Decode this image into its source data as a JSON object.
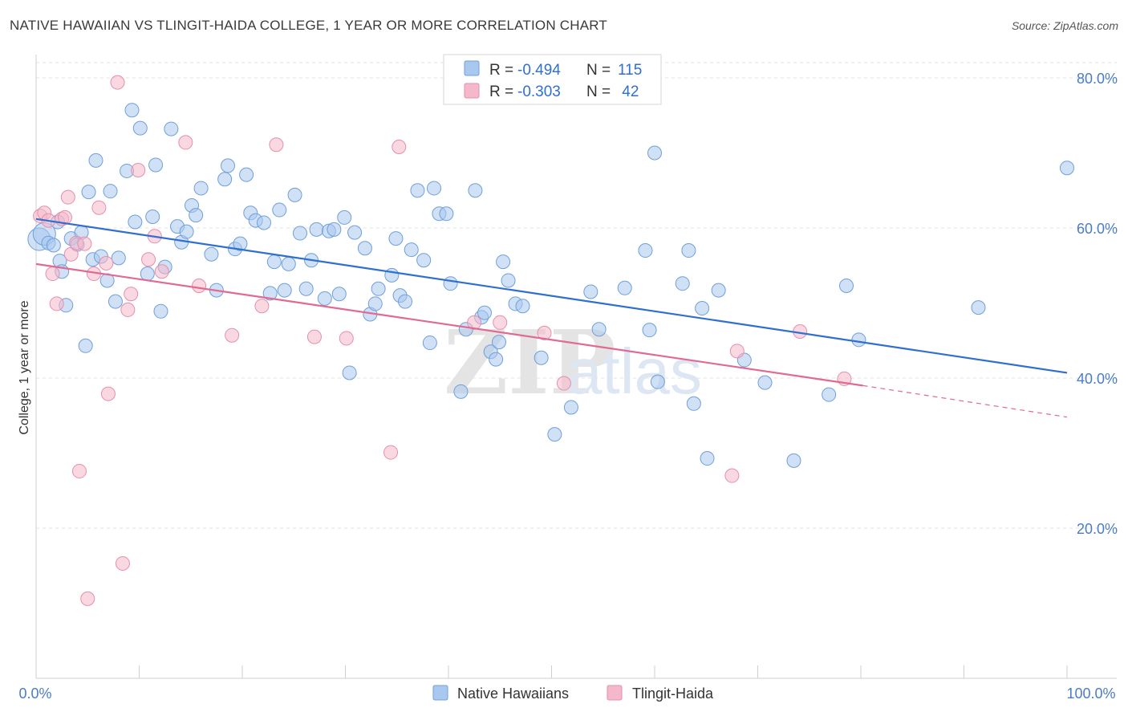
{
  "header": {
    "title": "NATIVE HAWAIIAN VS TLINGIT-HAIDA COLLEGE, 1 YEAR OR MORE CORRELATION CHART",
    "source": "Source: ZipAtlas.com"
  },
  "legend_top": {
    "rows": [
      {
        "r_label": "R = ",
        "r_value": "-0.494",
        "n_label": "N = ",
        "n_value": "115",
        "color": "#a9c8ee"
      },
      {
        "r_label": "R = ",
        "r_value": "-0.303",
        "n_label": "N = ",
        "n_value": " 42",
        "color": "#f5b8cb"
      }
    ]
  },
  "legend_bottom": [
    {
      "label": "Native Hawaiians",
      "color": "#a9c8ee"
    },
    {
      "label": "Tlingit-Haida",
      "color": "#f5b8cb"
    }
  ],
  "watermark": {
    "zip": "ZIP",
    "atlas": "atlas"
  },
  "chart_data": {
    "type": "scatter",
    "title": "NATIVE HAWAIIAN VS TLINGIT-HAIDA COLLEGE, 1 YEAR OR MORE CORRELATION CHART",
    "xlabel": "",
    "ylabel": "College, 1 year or more",
    "xlim": [
      0,
      100
    ],
    "ylim": [
      0,
      85
    ],
    "x_tick_labels": [
      "0.0%",
      "100.0%"
    ],
    "y_ticks": [
      20,
      40,
      60,
      80
    ],
    "y_tick_labels": [
      "20.0%",
      "40.0%",
      "60.0%",
      "80.0%"
    ],
    "grid": true,
    "legend_position": "top-center",
    "series": [
      {
        "name": "Native Hawaiians",
        "color": "#a9c8ee",
        "stroke": "#6f9fdc",
        "trend": {
          "x": [
            0,
            100
          ],
          "y": [
            61.2,
            40.7
          ],
          "color": "#2f6fd0"
        },
        "points": [
          [
            0.3,
            58.5
          ],
          [
            0.8,
            59.2
          ],
          [
            1.2,
            58.0
          ],
          [
            1.7,
            57.7
          ],
          [
            2.1,
            60.8
          ],
          [
            2.3,
            55.6
          ],
          [
            2.5,
            54.2
          ],
          [
            2.9,
            49.7
          ],
          [
            3.4,
            58.6
          ],
          [
            4.0,
            57.8
          ],
          [
            4.4,
            59.4
          ],
          [
            4.8,
            44.3
          ],
          [
            5.1,
            64.8
          ],
          [
            5.5,
            55.8
          ],
          [
            5.8,
            69.0
          ],
          [
            6.3,
            56.2
          ],
          [
            6.9,
            53.0
          ],
          [
            7.2,
            64.9
          ],
          [
            7.7,
            50.2
          ],
          [
            8.0,
            56.0
          ],
          [
            8.8,
            67.6
          ],
          [
            9.3,
            75.7
          ],
          [
            9.6,
            60.8
          ],
          [
            10.1,
            73.3
          ],
          [
            10.8,
            53.9
          ],
          [
            11.3,
            61.5
          ],
          [
            11.6,
            68.4
          ],
          [
            12.1,
            48.9
          ],
          [
            12.5,
            54.8
          ],
          [
            13.1,
            73.2
          ],
          [
            13.7,
            60.2
          ],
          [
            14.1,
            58.1
          ],
          [
            14.6,
            59.5
          ],
          [
            15.1,
            63.0
          ],
          [
            15.5,
            61.7
          ],
          [
            16.0,
            65.3
          ],
          [
            17.0,
            56.5
          ],
          [
            17.5,
            51.7
          ],
          [
            18.3,
            66.5
          ],
          [
            18.6,
            68.3
          ],
          [
            19.3,
            57.2
          ],
          [
            19.8,
            57.9
          ],
          [
            20.4,
            67.1
          ],
          [
            20.8,
            62.0
          ],
          [
            21.3,
            61.0
          ],
          [
            22.1,
            60.7
          ],
          [
            22.7,
            51.3
          ],
          [
            23.1,
            55.5
          ],
          [
            23.6,
            62.4
          ],
          [
            24.1,
            51.7
          ],
          [
            24.5,
            55.2
          ],
          [
            25.1,
            64.4
          ],
          [
            25.6,
            59.3
          ],
          [
            26.2,
            51.9
          ],
          [
            26.7,
            55.7
          ],
          [
            27.2,
            59.8
          ],
          [
            28.0,
            50.6
          ],
          [
            28.4,
            59.6
          ],
          [
            28.9,
            59.8
          ],
          [
            29.4,
            51.2
          ],
          [
            29.9,
            61.4
          ],
          [
            30.4,
            40.7
          ],
          [
            30.9,
            59.4
          ],
          [
            31.9,
            57.3
          ],
          [
            32.4,
            48.5
          ],
          [
            32.9,
            49.9
          ],
          [
            33.2,
            51.9
          ],
          [
            34.5,
            53.7
          ],
          [
            34.9,
            58.6
          ],
          [
            35.3,
            51.0
          ],
          [
            35.8,
            50.2
          ],
          [
            36.4,
            57.1
          ],
          [
            37.0,
            65.0
          ],
          [
            37.6,
            55.7
          ],
          [
            38.2,
            44.7
          ],
          [
            38.6,
            65.3
          ],
          [
            39.1,
            61.9
          ],
          [
            39.8,
            61.9
          ],
          [
            40.2,
            52.6
          ],
          [
            41.2,
            38.2
          ],
          [
            41.7,
            46.5
          ],
          [
            42.6,
            65.0
          ],
          [
            43.2,
            48.1
          ],
          [
            43.5,
            48.7
          ],
          [
            44.1,
            43.5
          ],
          [
            44.6,
            42.5
          ],
          [
            44.9,
            44.8
          ],
          [
            45.3,
            55.5
          ],
          [
            45.8,
            53.0
          ],
          [
            46.5,
            49.9
          ],
          [
            47.2,
            49.6
          ],
          [
            49.0,
            42.7
          ],
          [
            50.3,
            32.5
          ],
          [
            51.9,
            36.1
          ],
          [
            53.8,
            51.5
          ],
          [
            54.6,
            46.5
          ],
          [
            57.1,
            52.0
          ],
          [
            59.1,
            57.0
          ],
          [
            59.5,
            46.4
          ],
          [
            60.0,
            70.0
          ],
          [
            60.3,
            39.5
          ],
          [
            62.7,
            52.6
          ],
          [
            63.3,
            57.0
          ],
          [
            63.8,
            36.6
          ],
          [
            64.6,
            49.3
          ],
          [
            65.1,
            29.3
          ],
          [
            66.2,
            51.7
          ],
          [
            68.7,
            42.4
          ],
          [
            70.7,
            39.4
          ],
          [
            73.5,
            29.0
          ],
          [
            76.9,
            37.8
          ],
          [
            78.6,
            52.3
          ],
          [
            79.8,
            45.1
          ],
          [
            91.4,
            49.4
          ],
          [
            100.0,
            68.0
          ]
        ]
      },
      {
        "name": "Tlingit-Haida",
        "color": "#f5b8cb",
        "stroke": "#e58fab",
        "trend": {
          "x": [
            0,
            80.2
          ],
          "y": [
            55.2,
            39.0
          ],
          "color": "#e06a92"
        },
        "trend_ext": {
          "x": [
            80.2,
            100
          ],
          "y": [
            39.0,
            34.8
          ]
        },
        "points": [
          [
            0.4,
            61.6
          ],
          [
            0.8,
            62.0
          ],
          [
            1.2,
            61.0
          ],
          [
            1.6,
            53.9
          ],
          [
            2.0,
            49.9
          ],
          [
            2.5,
            61.2
          ],
          [
            2.8,
            61.4
          ],
          [
            3.1,
            64.1
          ],
          [
            3.4,
            56.5
          ],
          [
            3.9,
            58.0
          ],
          [
            4.2,
            27.6
          ],
          [
            4.7,
            57.9
          ],
          [
            5.0,
            10.6
          ],
          [
            5.6,
            53.9
          ],
          [
            6.1,
            62.7
          ],
          [
            6.8,
            55.3
          ],
          [
            7.0,
            37.9
          ],
          [
            7.9,
            79.4
          ],
          [
            8.4,
            15.3
          ],
          [
            8.9,
            49.1
          ],
          [
            9.2,
            51.2
          ],
          [
            9.9,
            67.7
          ],
          [
            10.9,
            55.8
          ],
          [
            11.5,
            58.9
          ],
          [
            12.2,
            54.2
          ],
          [
            14.5,
            71.4
          ],
          [
            15.8,
            52.3
          ],
          [
            19.0,
            45.7
          ],
          [
            21.9,
            49.6
          ],
          [
            23.3,
            71.1
          ],
          [
            27.0,
            45.5
          ],
          [
            30.1,
            45.3
          ],
          [
            34.4,
            30.1
          ],
          [
            35.2,
            70.8
          ],
          [
            42.5,
            47.4
          ],
          [
            45.0,
            47.4
          ],
          [
            49.3,
            46.0
          ],
          [
            51.2,
            39.3
          ],
          [
            67.5,
            27.0
          ],
          [
            68.0,
            43.6
          ],
          [
            74.1,
            46.2
          ],
          [
            78.4,
            39.9
          ]
        ]
      }
    ]
  }
}
